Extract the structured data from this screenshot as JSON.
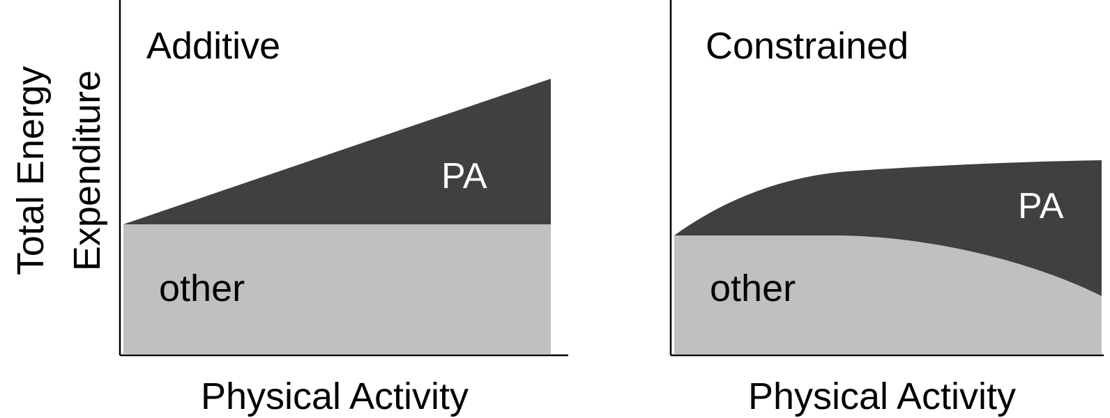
{
  "ylabel_line1": "Total Energy",
  "ylabel_line2": "Expenditure",
  "panels": [
    {
      "title": "Additive",
      "xlabel": "Physical Activity",
      "pa_label": "PA",
      "other_label": "other",
      "colors": {
        "pa": "#404040",
        "other": "#c0c0c0"
      }
    },
    {
      "title": "Constrained",
      "xlabel": "Physical Activity",
      "pa_label": "PA",
      "other_label": "other",
      "colors": {
        "pa": "#404040",
        "other": "#c0c0c0"
      }
    }
  ]
}
